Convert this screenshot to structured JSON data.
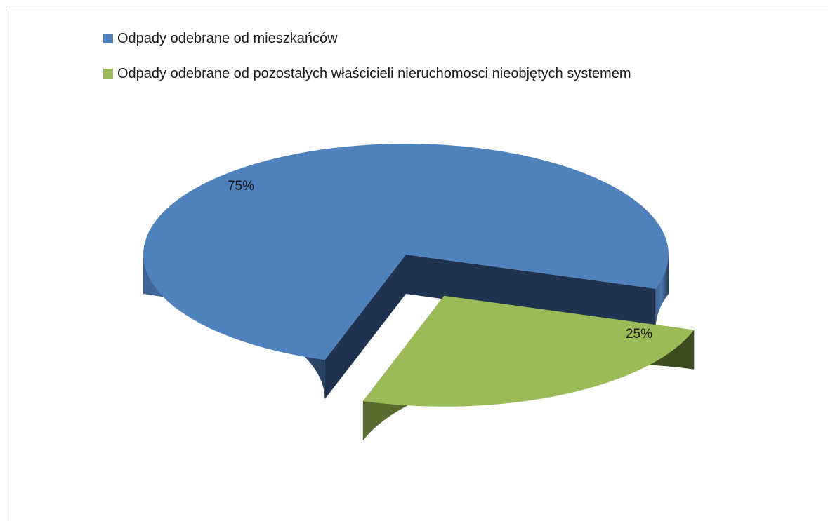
{
  "chart_data": {
    "type": "pie",
    "categories": [
      "Odpady odebrane od mieszkańców",
      "Odpady odebrane od pozostałych właścicieli nieruchomosci nieobjętych systemem"
    ],
    "values": [
      75,
      25
    ],
    "labels": [
      "75%",
      "25%"
    ],
    "title": "",
    "legend": "top-left",
    "colors": [
      "#4f81bd",
      "#9bbb59"
    ],
    "exploded": [
      false,
      true
    ],
    "style": "3d"
  }
}
